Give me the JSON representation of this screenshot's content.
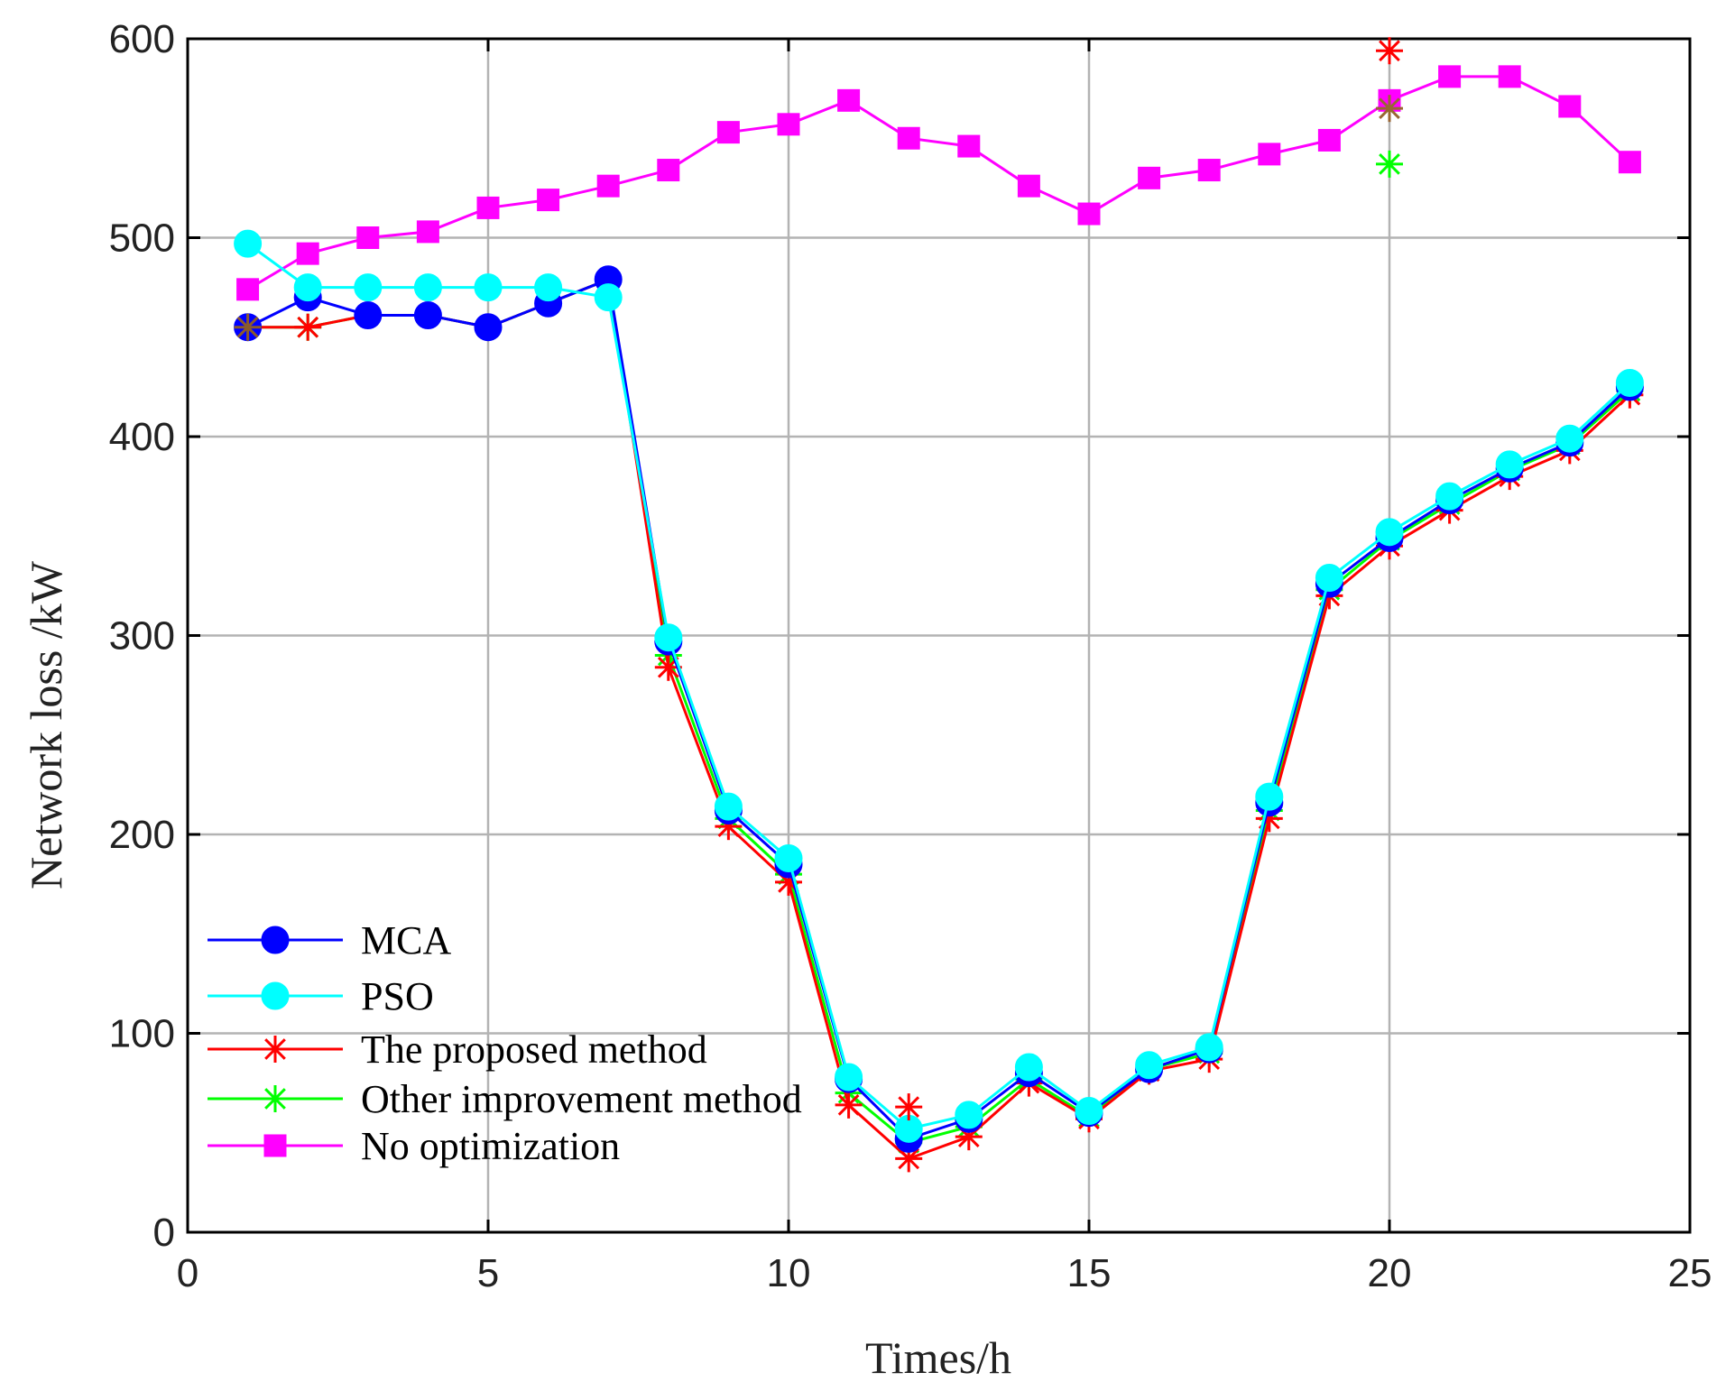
{
  "chart_data": {
    "type": "line",
    "title": "",
    "xlabel": "Times/h",
    "ylabel": "Network loss /kW",
    "xlim": [
      0,
      25
    ],
    "ylim": [
      0,
      600
    ],
    "xticks": [
      0,
      5,
      10,
      15,
      20,
      25
    ],
    "yticks": [
      0,
      100,
      200,
      300,
      400,
      500,
      600
    ],
    "grid": true,
    "legend_position": "bottom-left",
    "x": [
      1,
      2,
      3,
      4,
      5,
      6,
      7,
      8,
      9,
      10,
      11,
      12,
      13,
      14,
      15,
      16,
      17,
      18,
      19,
      20,
      21,
      22,
      23,
      24
    ],
    "series": [
      {
        "name": "MCA",
        "color": "#0000ff",
        "marker": "circle",
        "values": [
          455,
          470,
          461,
          461,
          455,
          467,
          479,
          297,
          212,
          185,
          77,
          47,
          57,
          80,
          60,
          82,
          92,
          216,
          326,
          349,
          368,
          384,
          397,
          425
        ]
      },
      {
        "name": "PSO",
        "color": "#00ffff",
        "marker": "circle",
        "values": [
          497,
          475,
          475,
          475,
          475,
          475,
          470,
          299,
          214,
          188,
          78,
          52,
          59,
          83,
          61,
          84,
          93,
          219,
          329,
          352,
          370,
          386,
          399,
          427
        ]
      },
      {
        "name": "The proposed method",
        "color": "#ff0000",
        "marker": "asterisk",
        "values": [
          455,
          455,
          461,
          461,
          455,
          467,
          479,
          284,
          204,
          176,
          64,
          37,
          48,
          75,
          57,
          81,
          87,
          208,
          320,
          345,
          363,
          380,
          393,
          421
        ]
      },
      {
        "name": "Other improvement method",
        "color": "#00ff00",
        "marker": "asterisk",
        "values": [
          455,
          455,
          461,
          461,
          455,
          467,
          479,
          290,
          208,
          180,
          70,
          45,
          53,
          77,
          58,
          82,
          90,
          212,
          323,
          348,
          366,
          383,
          396,
          423
        ]
      },
      {
        "name": "No optimization",
        "color": "#ff00ff",
        "marker": "square",
        "values": [
          474,
          492,
          500,
          503,
          515,
          519,
          526,
          534,
          553,
          557,
          569,
          550,
          546,
          526,
          512,
          530,
          534,
          542,
          549,
          569,
          581,
          581,
          566,
          538
        ]
      }
    ],
    "outliers": [
      {
        "series": "The proposed method",
        "x": 20,
        "y": 594
      },
      {
        "series": "The proposed method",
        "x": 12,
        "y": 63
      },
      {
        "series": "The proposed method",
        "x": 20,
        "y": 565
      },
      {
        "series": "Other improvement method",
        "x": 20,
        "y": 537
      },
      {
        "series": "Other improvement method",
        "x": 1,
        "y": 455
      }
    ]
  },
  "legend_order": [
    "MCA",
    "PSO",
    "The proposed method",
    "Other improvement method",
    "No optimization"
  ]
}
